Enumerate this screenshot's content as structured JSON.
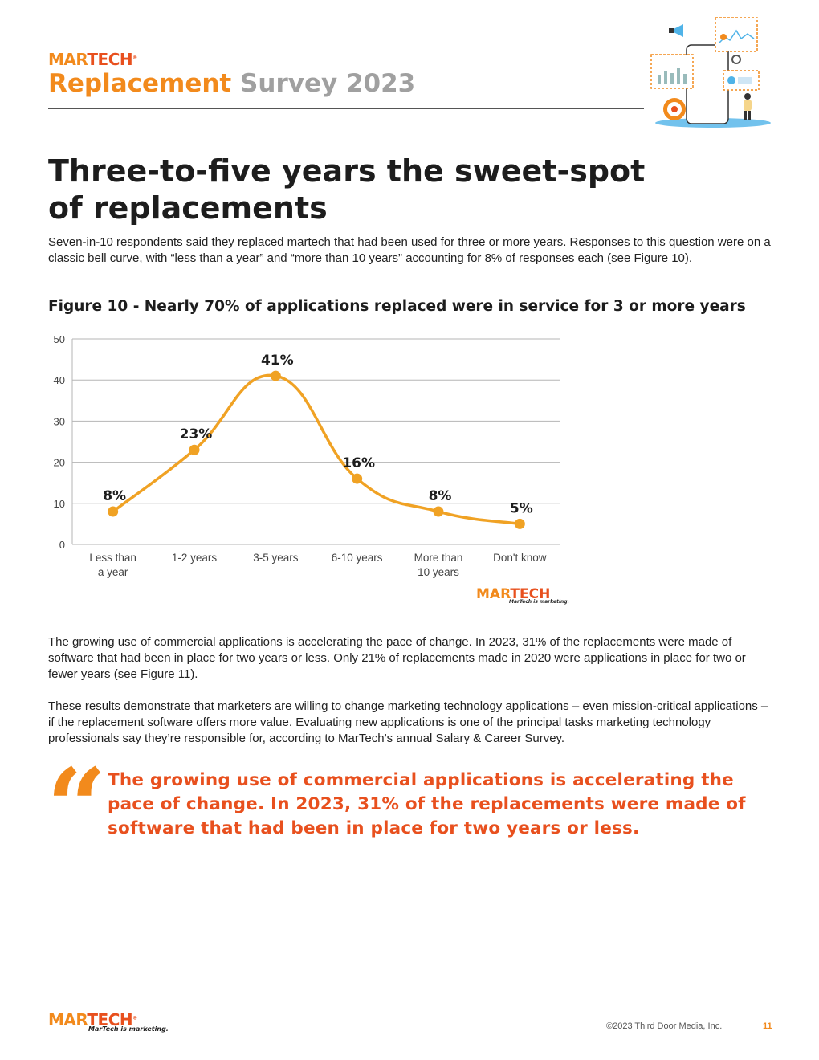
{
  "header": {
    "logo_mar": "MAR",
    "logo_tech": "TECH",
    "title_part1": "Replacement",
    "title_part2": "Survey 2023"
  },
  "heading": "Three-to-five years the sweet-spot of replacements",
  "intro": "Seven-in-10 respondents said they replaced martech that had been used for three or more years. Responses to this question were on a classic bell curve, with “less than a year” and “more than 10 years” accounting for 8% of responses each (see Figure 10).",
  "figure_title": "Figure 10 - Nearly 70% of applications replaced were in service for 3 or more years",
  "chart_data": {
    "type": "line",
    "categories": [
      [
        "Less than",
        "a year"
      ],
      [
        "1-2 years"
      ],
      [
        "3-5 years"
      ],
      [
        "6-10 years"
      ],
      [
        "More than",
        "10 years"
      ],
      [
        "Don't know"
      ]
    ],
    "values": [
      8,
      23,
      41,
      16,
      8,
      5
    ],
    "data_labels": [
      "8%",
      "23%",
      "41%",
      "16%",
      "8%",
      "5%"
    ],
    "ylim": [
      0,
      50
    ],
    "yticks": [
      0,
      10,
      20,
      30,
      40,
      50
    ],
    "grid": true,
    "line_color": "#f0a224",
    "watermark_mar": "MAR",
    "watermark_tech": "TECH",
    "watermark_tagline": "MarTech is marketing."
  },
  "para1": "The growing use of commercial applications is accelerating the pace of change. In 2023, 31% of the replacements were made of software that had been in place for two years or less. Only 21% of replacements made in 2020 were applications in place for two or fewer years (see Figure 11).",
  "para2": "These results demonstrate that marketers are willing to change marketing technology applications – even mission-critical applications – if the replacement software offers more value. Evaluating new applications is one of the principal tasks marketing technology professionals say they’re responsible for, according to MarTech’s annual Salary & Career Survey.",
  "quote_mark": "“",
  "pull_quote": "The growing use of commercial applications is accelerating the pace of change. In 2023, 31% of the replacements were made of software that had been in place for two years or less.",
  "footer": {
    "logo_mar": "MAR",
    "logo_tech": "TECH",
    "tagline": "MarTech is marketing.",
    "copyright": "©2023 Third Door Media, Inc.",
    "page_number": "11"
  },
  "colors": {
    "brand_orange": "#f28a1c",
    "brand_red_orange": "#e8501e",
    "grey_title": "#a0a0a0"
  },
  "illustration_icons": [
    "megaphone-icon",
    "bar-chart-icon",
    "target-icon",
    "gear-icon",
    "person-icon",
    "smartphone-icon"
  ]
}
